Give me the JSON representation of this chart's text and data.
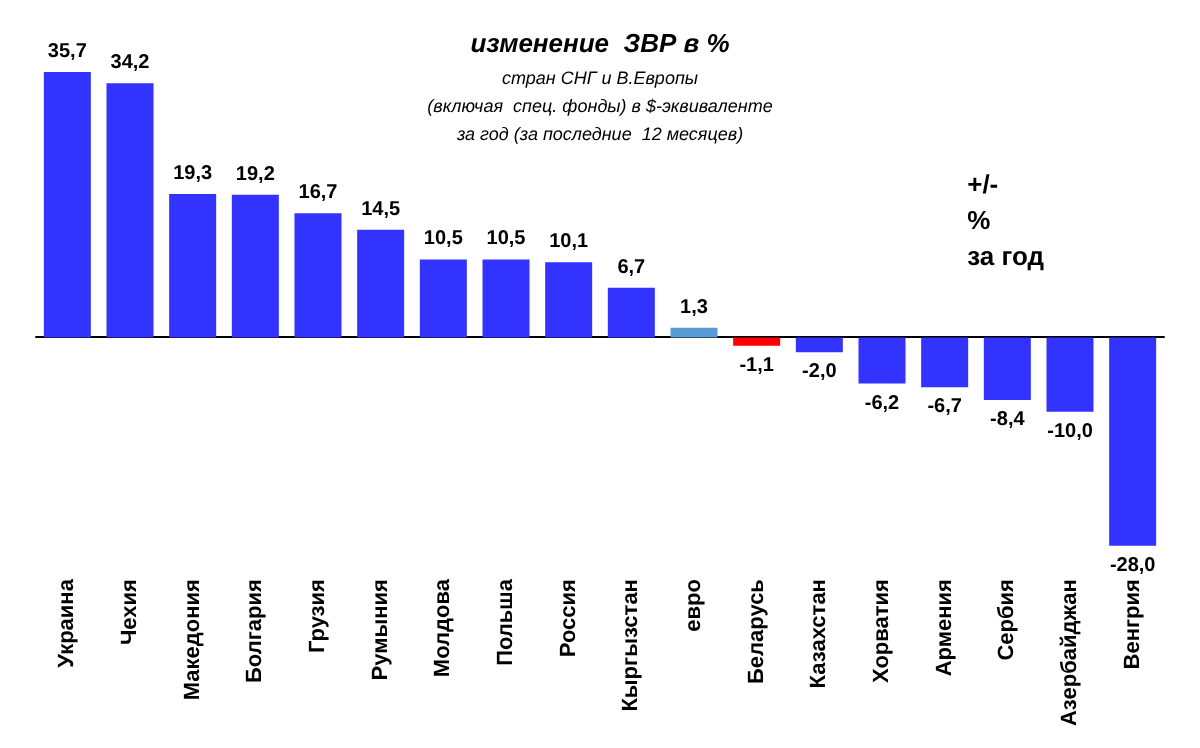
{
  "chart_data": {
    "type": "bar",
    "title": "изменение  ЗВР в %",
    "subtitle": "стран СНГ и В.Европы\n(включая  спец. фонды) в $-эквиваленте\nза год (за последние  12 месяцев)",
    "categories": [
      "Украина",
      "Чехия",
      "Македония",
      "Болгария",
      "Грузия",
      "Румыния",
      "Молдова",
      "Польша",
      "Россия",
      "Кыргызстан",
      "евро",
      "Беларусь",
      "Казахстан",
      "Хорватия",
      "Армения",
      "Сербия",
      "Азербайджан",
      "Венгрия"
    ],
    "values": [
      35.7,
      34.2,
      19.3,
      19.2,
      16.7,
      14.5,
      10.5,
      10.5,
      10.1,
      6.7,
      1.3,
      -1.1,
      -2.0,
      -6.2,
      -6.7,
      -8.4,
      -10.0,
      -28.0
    ],
    "value_labels": [
      "35,7",
      "34,2",
      "19,3",
      "19,2",
      "16,7",
      "14,5",
      "10,5",
      "10,5",
      "10,1",
      "6,7",
      "1,3",
      "-1,1",
      "-2,0",
      "-6,2",
      "-6,7",
      "-8,4",
      "-10,0",
      "-28,0"
    ],
    "colors": [
      "#3333ff",
      "#3333ff",
      "#3333ff",
      "#3333ff",
      "#3333ff",
      "#3333ff",
      "#3333ff",
      "#3333ff",
      "#3333ff",
      "#3333ff",
      "#5b9bd5",
      "#ff0000",
      "#3333ff",
      "#3333ff",
      "#3333ff",
      "#3333ff",
      "#3333ff",
      "#3333ff"
    ],
    "annotations": [
      "+/-\n%\nза год"
    ],
    "grid": false
  }
}
